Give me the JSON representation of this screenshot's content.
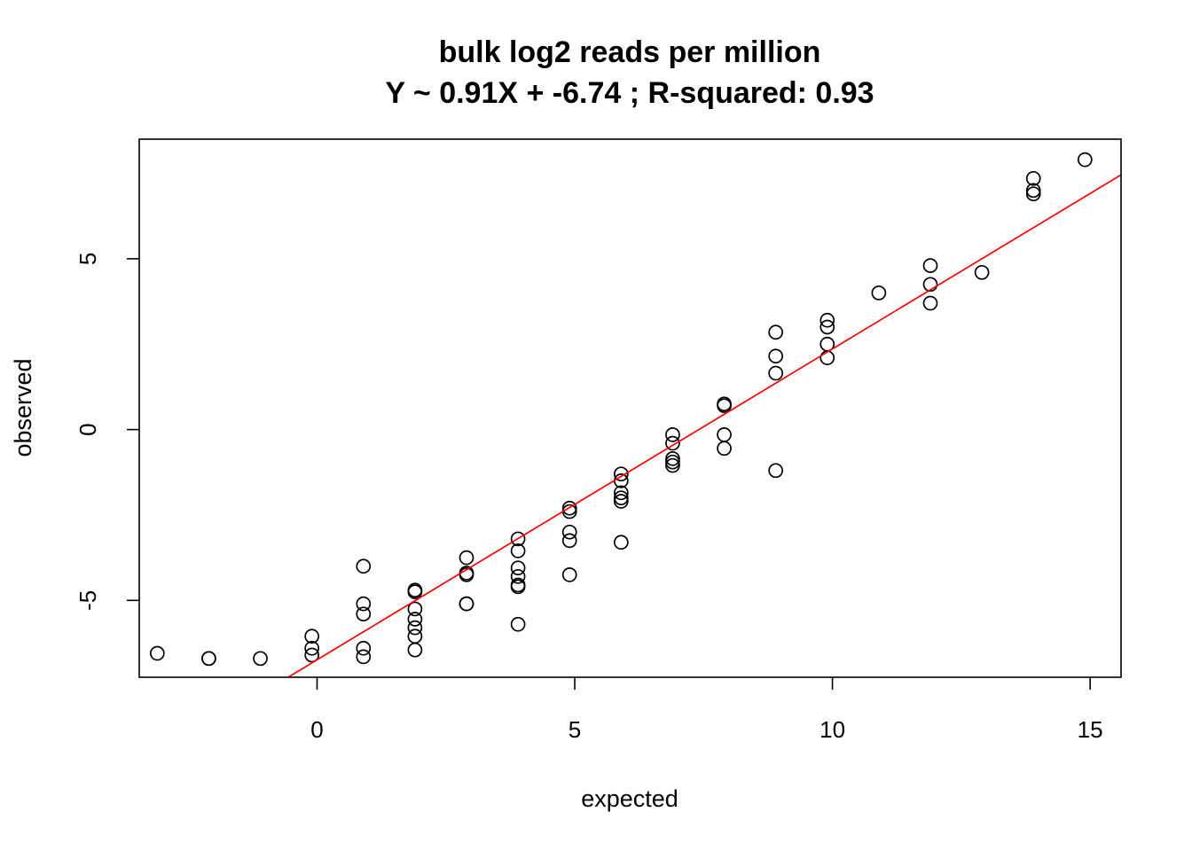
{
  "chart_data": {
    "type": "scatter",
    "title": "bulk log2 reads per million",
    "subtitle": "Y ~ 0.91X + -6.74 ; R-squared: 0.93",
    "xlabel": "expected",
    "ylabel": "observed",
    "xlim": [
      -3.45,
      15.6
    ],
    "ylim": [
      -7.25,
      8.5
    ],
    "x_ticks": [
      0,
      5,
      10,
      15
    ],
    "y_ticks": [
      -5,
      0,
      5
    ],
    "grid": false,
    "legend": "none",
    "point_color": "#000000",
    "fit_line": {
      "slope": 0.91,
      "intercept": -6.74,
      "color": "#ff0000"
    },
    "points": [
      [
        -3.1,
        -6.55
      ],
      [
        -2.1,
        -6.7
      ],
      [
        -2.1,
        -6.7
      ],
      [
        -1.1,
        -6.7
      ],
      [
        -0.1,
        -6.05
      ],
      [
        -0.1,
        -6.4
      ],
      [
        -0.1,
        -6.6
      ],
      [
        0.9,
        -4.0
      ],
      [
        0.9,
        -5.1
      ],
      [
        0.9,
        -5.4
      ],
      [
        0.9,
        -6.4
      ],
      [
        0.9,
        -6.65
      ],
      [
        1.9,
        -4.7
      ],
      [
        1.9,
        -4.75
      ],
      [
        1.9,
        -5.25
      ],
      [
        1.9,
        -5.55
      ],
      [
        1.9,
        -5.8
      ],
      [
        1.9,
        -6.05
      ],
      [
        1.9,
        -6.45
      ],
      [
        2.9,
        -3.75
      ],
      [
        2.9,
        -4.2
      ],
      [
        2.9,
        -4.25
      ],
      [
        2.9,
        -5.1
      ],
      [
        2.9,
        -5.1
      ],
      [
        3.9,
        -3.2
      ],
      [
        3.9,
        -3.55
      ],
      [
        3.9,
        -4.05
      ],
      [
        3.9,
        -4.3
      ],
      [
        3.9,
        -4.55
      ],
      [
        3.9,
        -4.6
      ],
      [
        3.9,
        -5.7
      ],
      [
        4.9,
        -2.3
      ],
      [
        4.9,
        -2.4
      ],
      [
        4.9,
        -3.0
      ],
      [
        4.9,
        -3.25
      ],
      [
        4.9,
        -4.25
      ],
      [
        5.9,
        -1.3
      ],
      [
        5.9,
        -1.5
      ],
      [
        5.9,
        -1.85
      ],
      [
        5.9,
        -2.0
      ],
      [
        5.9,
        -2.1
      ],
      [
        5.9,
        -3.3
      ],
      [
        6.9,
        -0.15
      ],
      [
        6.9,
        -0.4
      ],
      [
        6.9,
        -0.85
      ],
      [
        6.9,
        -0.95
      ],
      [
        6.9,
        -1.05
      ],
      [
        7.9,
        0.75
      ],
      [
        7.9,
        0.7
      ],
      [
        7.9,
        -0.15
      ],
      [
        7.9,
        -0.55
      ],
      [
        8.9,
        2.85
      ],
      [
        8.9,
        2.15
      ],
      [
        8.9,
        1.65
      ],
      [
        8.9,
        -1.2
      ],
      [
        9.9,
        3.2
      ],
      [
        9.9,
        3.0
      ],
      [
        9.9,
        2.5
      ],
      [
        9.9,
        2.1
      ],
      [
        10.9,
        4.0
      ],
      [
        11.9,
        4.8
      ],
      [
        11.9,
        4.25
      ],
      [
        11.9,
        3.7
      ],
      [
        12.9,
        4.6
      ],
      [
        13.9,
        7.35
      ],
      [
        13.9,
        7.0
      ],
      [
        13.9,
        6.9
      ],
      [
        14.9,
        7.9
      ]
    ]
  }
}
